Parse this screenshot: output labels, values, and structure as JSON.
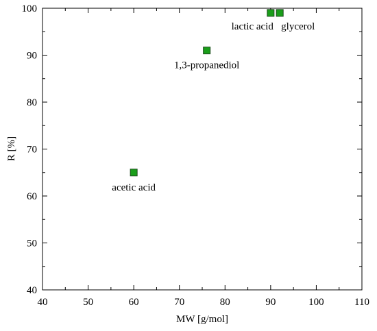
{
  "chart_data": {
    "type": "scatter",
    "xlabel": "MW [g/mol]",
    "ylabel": "R [%]",
    "xlim": [
      40,
      110
    ],
    "ylim": [
      40,
      100
    ],
    "xticks": [
      40,
      50,
      60,
      70,
      80,
      90,
      100,
      110
    ],
    "yticks": [
      40,
      50,
      60,
      70,
      80,
      90,
      100
    ],
    "grid": false,
    "marker": "square",
    "marker_color": "#1a9e1a",
    "marker_edge": "#1c4a1c",
    "points": [
      {
        "label": "acetic acid",
        "x": 60,
        "y": 65
      },
      {
        "label": "1,3-propanediol",
        "x": 76,
        "y": 91
      },
      {
        "label": "lactic acid",
        "x": 90,
        "y": 99
      },
      {
        "label": "glycerol",
        "x": 92,
        "y": 99
      }
    ]
  }
}
